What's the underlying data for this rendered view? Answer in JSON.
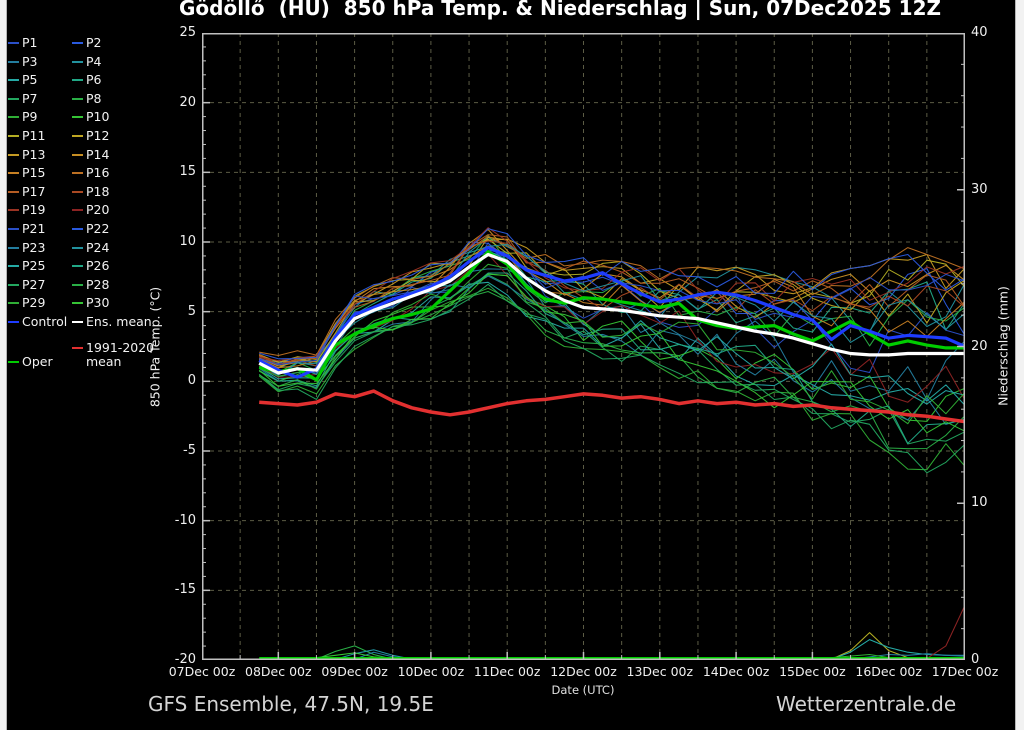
{
  "page": {
    "title": "Gödöllő  (HU)  850 hPa Temp. & Niederschlag | Sun, 07Dec2025 12Z",
    "footer_left": "GFS Ensemble, 47.5N, 19.5E",
    "footer_right": "Wetterzentrale.de",
    "date_axis_label": "Date (UTC)",
    "y_left_axis_label": "850 hPa Temp. (°C)",
    "y_right_axis_label": "Niederschlag (mm)"
  },
  "colors": {
    "background": "#000000",
    "frame": "#c0c0c0",
    "grid": "#5c5c45",
    "tick_text": "#f0f0f0",
    "control": "#1e3cff",
    "ens_mean": "#ffffff",
    "clim_mean": "#e23030",
    "oper": "#00cc00"
  },
  "legend": {
    "items": [
      {
        "label": "P1",
        "color": "#2b50c8"
      },
      {
        "label": "P2",
        "color": "#2a5adf"
      },
      {
        "label": "P3",
        "color": "#237d9e"
      },
      {
        "label": "P4",
        "color": "#22929e"
      },
      {
        "label": "P5",
        "color": "#25aaa5"
      },
      {
        "label": "P6",
        "color": "#21a886"
      },
      {
        "label": "P7",
        "color": "#23a75f"
      },
      {
        "label": "P8",
        "color": "#2aaf46"
      },
      {
        "label": "P9",
        "color": "#2fae35"
      },
      {
        "label": "P10",
        "color": "#35c435"
      },
      {
        "label": "P11",
        "color": "#b3ae23"
      },
      {
        "label": "P12",
        "color": "#bfa623"
      },
      {
        "label": "P13",
        "color": "#c49a23"
      },
      {
        "label": "P14",
        "color": "#c78e23"
      },
      {
        "label": "P15",
        "color": "#c78023"
      },
      {
        "label": "P16",
        "color": "#bd7023"
      },
      {
        "label": "P17",
        "color": "#b55c23"
      },
      {
        "label": "P18",
        "color": "#aa4923"
      },
      {
        "label": "P19",
        "color": "#9b3323"
      },
      {
        "label": "P20",
        "color": "#8c2323"
      },
      {
        "label": "P21",
        "color": "#2b50c8"
      },
      {
        "label": "P22",
        "color": "#2a5adf"
      },
      {
        "label": "P23",
        "color": "#237d9e"
      },
      {
        "label": "P24",
        "color": "#22929e"
      },
      {
        "label": "P25",
        "color": "#25aaa5"
      },
      {
        "label": "P26",
        "color": "#21a886"
      },
      {
        "label": "P27",
        "color": "#23a75f"
      },
      {
        "label": "P28",
        "color": "#2aaf46"
      },
      {
        "label": "P29",
        "color": "#2fae35"
      },
      {
        "label": "P30",
        "color": "#35c435"
      },
      {
        "label": "Control",
        "color": "#1e3cff"
      },
      {
        "label": "Ens. mean",
        "color": "#ffffff"
      },
      {
        "label": "1991-2020\nmean",
        "color": "#e23030"
      },
      {
        "label": "Oper",
        "color": "#00cc00"
      }
    ]
  },
  "chart_data": {
    "type": "line",
    "title": "Gödöllő (HU) 850 hPa Temp. & Niederschlag | Sun, 07Dec2025 12Z",
    "station": "Gödöllő (HU)",
    "model_run": "Sun, 07Dec2025 12Z",
    "model": "GFS Ensemble",
    "location": "47.5N, 19.5E",
    "x_axis": {
      "label": "Date (UTC)",
      "tick_labels": [
        "07Dec 00z",
        "08Dec 00z",
        "09Dec 00z",
        "10Dec 00z",
        "11Dec 00z",
        "12Dec 00z",
        "13Dec 00z",
        "14Dec 00z",
        "15Dec 00z",
        "16Dec 00z",
        "17Dec 00z"
      ],
      "range_days": [
        0,
        10
      ],
      "gridline_interval_hours": 12
    },
    "y_left": {
      "label": "850 hPa Temp. (°C)",
      "range": [
        -20,
        25
      ],
      "ticks": [
        25,
        20,
        15,
        10,
        5,
        0,
        -5,
        -10,
        -15,
        -20
      ]
    },
    "y_right": {
      "label": "Niederschlag (mm)",
      "range": [
        0,
        40
      ],
      "ticks": [
        40,
        30,
        20,
        10,
        0
      ],
      "minor_step": 2
    },
    "grid": "dashed, every 5 °C horizontal and every 12 h vertical",
    "legend_position": "outside-left",
    "time_days": [
      0.75,
      1,
      1.25,
      1.5,
      1.75,
      2,
      2.25,
      2.5,
      2.75,
      3,
      3.25,
      3.5,
      3.75,
      4,
      4.25,
      4.5,
      4.75,
      5,
      5.25,
      5.5,
      5.75,
      6,
      6.25,
      6.5,
      6.75,
      7,
      7.25,
      7.5,
      7.75,
      8,
      8.25,
      8.5,
      8.75,
      9,
      9.25,
      9.5,
      9.75,
      10
    ],
    "series": {
      "ens_mean_temp_c": [
        1.3,
        0.6,
        0.9,
        0.8,
        2.9,
        4.5,
        5.1,
        5.6,
        6.1,
        6.6,
        7.2,
        8.2,
        9.1,
        8.6,
        7.4,
        6.5,
        5.8,
        5.3,
        5.2,
        5.1,
        4.9,
        4.7,
        4.6,
        4.5,
        4.2,
        3.9,
        3.6,
        3.4,
        3.1,
        2.7,
        2.3,
        2.0,
        1.9,
        1.9,
        2.0,
        2.0,
        2.0,
        2.0
      ],
      "control_temp_c": [
        1.5,
        0.8,
        0.3,
        0.9,
        3.2,
        4.8,
        5.3,
        5.9,
        6.3,
        6.8,
        7.5,
        8.6,
        9.6,
        9.0,
        8.0,
        7.6,
        7.2,
        7.4,
        7.8,
        7.0,
        6.3,
        5.7,
        5.9,
        6.2,
        6.4,
        6.2,
        5.8,
        5.3,
        4.8,
        4.4,
        3.0,
        4.0,
        3.6,
        3.1,
        3.3,
        3.2,
        3.1,
        2.5
      ],
      "oper_temp_c": [
        1.0,
        0.7,
        0.9,
        0.1,
        2.6,
        3.4,
        4.0,
        4.5,
        4.8,
        5.2,
        6.5,
        7.8,
        9.3,
        8.4,
        6.8,
        5.9,
        5.6,
        6.0,
        5.9,
        5.7,
        5.5,
        5.3,
        5.6,
        4.4,
        4.0,
        3.8,
        3.9,
        4.0,
        3.4,
        2.9,
        3.6,
        4.3,
        3.4,
        2.6,
        2.9,
        2.6,
        2.4,
        2.4
      ],
      "clim_1991_2020_temp_c": [
        -1.5,
        -1.6,
        -1.7,
        -1.5,
        -0.9,
        -1.1,
        -0.7,
        -1.4,
        -1.9,
        -2.2,
        -2.4,
        -2.2,
        -1.9,
        -1.6,
        -1.4,
        -1.3,
        -1.1,
        -0.9,
        -1.0,
        -1.2,
        -1.1,
        -1.3,
        -1.6,
        -1.4,
        -1.6,
        -1.5,
        -1.7,
        -1.6,
        -1.8,
        -1.7,
        -1.9,
        -2.0,
        -2.1,
        -2.2,
        -2.4,
        -2.5,
        -2.7,
        -2.9
      ],
      "ensemble_envelope_max_c": [
        2.0,
        1.6,
        1.9,
        2.0,
        4.3,
        6.3,
        6.8,
        7.2,
        7.6,
        8.2,
        8.8,
        10.2,
        11.0,
        10.3,
        9.3,
        8.8,
        8.3,
        8.6,
        8.4,
        8.3,
        8.0,
        7.8,
        7.8,
        7.9,
        7.8,
        7.9,
        7.8,
        7.9,
        8.0,
        7.8,
        7.5,
        7.8,
        8.0,
        8.5,
        9.3,
        8.8,
        8.3,
        8.3
      ],
      "ensemble_envelope_min_c": [
        0.4,
        -0.6,
        -0.4,
        -1.0,
        1.2,
        2.6,
        3.0,
        3.4,
        3.9,
        4.4,
        4.9,
        5.6,
        6.6,
        5.9,
        4.6,
        3.6,
        2.8,
        2.2,
        1.9,
        1.6,
        1.2,
        0.8,
        0.5,
        0.2,
        -0.2,
        -0.7,
        -1.1,
        -1.6,
        -2.1,
        -2.6,
        -3.1,
        -3.6,
        -4.2,
        -5.0,
        -6.0,
        -7.2,
        -6.5,
        -6.0
      ]
    },
    "members": {
      "count": 30,
      "labels": [
        "P1",
        "P2",
        "P3",
        "P4",
        "P5",
        "P6",
        "P7",
        "P8",
        "P9",
        "P10",
        "P11",
        "P12",
        "P13",
        "P14",
        "P15",
        "P16",
        "P17",
        "P18",
        "P19",
        "P20",
        "P21",
        "P22",
        "P23",
        "P24",
        "P25",
        "P26",
        "P27",
        "P28",
        "P29",
        "P30"
      ],
      "bias": [
        0.15,
        0.45,
        -0.25,
        0.6,
        -0.5,
        0.35,
        -0.75,
        0.25,
        -0.95,
        -0.55,
        0.85,
        0.55,
        0.9,
        0.7,
        0.5,
        0.95,
        0.65,
        0.4,
        0.8,
        -0.3,
        0.55,
        0.95,
        -0.4,
        0.2,
        -0.15,
        -0.65,
        -1.0,
        -0.85,
        -0.45,
        -0.7
      ],
      "seed": 20251207
    },
    "precip_mm_events": [
      {
        "color": "#2aaf46",
        "points": [
          [
            1.5,
            0
          ],
          [
            1.75,
            0.55
          ],
          [
            2.0,
            0.9
          ],
          [
            2.25,
            0.35
          ],
          [
            2.5,
            0.05
          ],
          [
            2.75,
            0
          ]
        ]
      },
      {
        "color": "#22929e",
        "points": [
          [
            1.75,
            0
          ],
          [
            2.0,
            0.4
          ],
          [
            2.25,
            0.65
          ],
          [
            2.5,
            0.3
          ],
          [
            2.75,
            0.05
          ],
          [
            3.0,
            0
          ]
        ]
      },
      {
        "color": "#237d9e",
        "points": [
          [
            2.0,
            0
          ],
          [
            2.25,
            0.5
          ],
          [
            2.5,
            0.2
          ],
          [
            2.75,
            0
          ]
        ]
      },
      {
        "color": "#35c435",
        "points": [
          [
            1.25,
            0
          ],
          [
            1.5,
            0.15
          ],
          [
            1.75,
            0.3
          ],
          [
            2.0,
            0.45
          ],
          [
            2.25,
            0.2
          ],
          [
            2.5,
            0.1
          ],
          [
            3.0,
            0.05
          ],
          [
            3.5,
            0
          ]
        ]
      },
      {
        "color": "#b3ae23",
        "points": [
          [
            8.25,
            0
          ],
          [
            8.5,
            0.6
          ],
          [
            8.75,
            1.75
          ],
          [
            9.0,
            0.6
          ],
          [
            9.25,
            0.15
          ],
          [
            9.5,
            0.05
          ],
          [
            10,
            0
          ]
        ]
      },
      {
        "color": "#25aaa5",
        "points": [
          [
            8.25,
            0
          ],
          [
            8.5,
            0.5
          ],
          [
            8.75,
            1.3
          ],
          [
            9.0,
            0.8
          ],
          [
            9.25,
            0.5
          ],
          [
            9.5,
            0.35
          ],
          [
            9.75,
            0.3
          ],
          [
            10,
            0.25
          ]
        ]
      },
      {
        "color": "#237d9e",
        "points": [
          [
            8.5,
            0
          ],
          [
            8.75,
            0.2
          ],
          [
            9.0,
            0.35
          ],
          [
            9.25,
            0.3
          ],
          [
            9.5,
            0.4
          ],
          [
            9.75,
            0.3
          ],
          [
            10,
            0.3
          ]
        ]
      },
      {
        "color": "#8c2323",
        "points": [
          [
            9.25,
            0
          ],
          [
            9.5,
            0.1
          ],
          [
            9.75,
            0.9
          ],
          [
            10,
            3.5
          ]
        ]
      },
      {
        "color": "#2fae35",
        "points": [
          [
            7.75,
            0
          ],
          [
            8.25,
            0.15
          ],
          [
            8.75,
            0.35
          ],
          [
            9.0,
            0.15
          ],
          [
            9.5,
            0.1
          ],
          [
            10,
            0.08
          ]
        ]
      }
    ],
    "oper_precip_mm": [
      [
        0.75,
        0.07
      ],
      [
        10,
        0.07
      ]
    ]
  }
}
